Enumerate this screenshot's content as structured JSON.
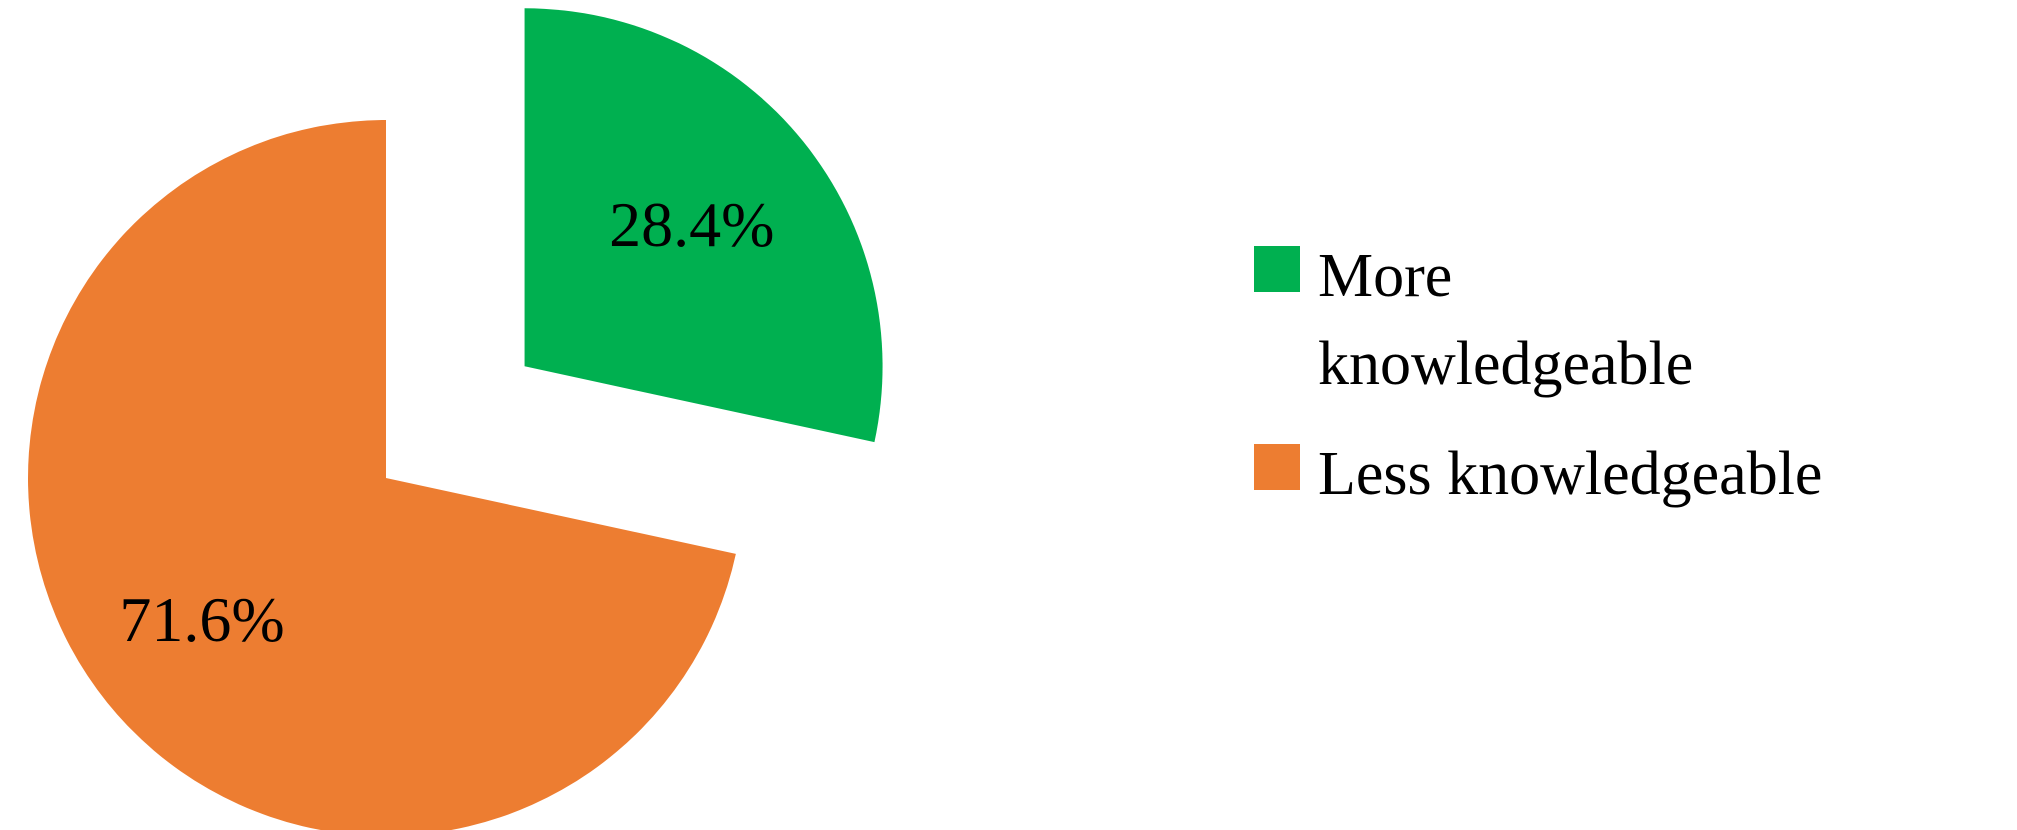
{
  "chart_data": {
    "type": "pie",
    "categories": [
      "More knowledgeable",
      "Less knowledgeable"
    ],
    "values": [
      28.4,
      71.6
    ],
    "value_labels": [
      "28.4%",
      "71.6%"
    ],
    "colors": [
      "#00b050",
      "#ed7d31"
    ],
    "legend": "right"
  }
}
